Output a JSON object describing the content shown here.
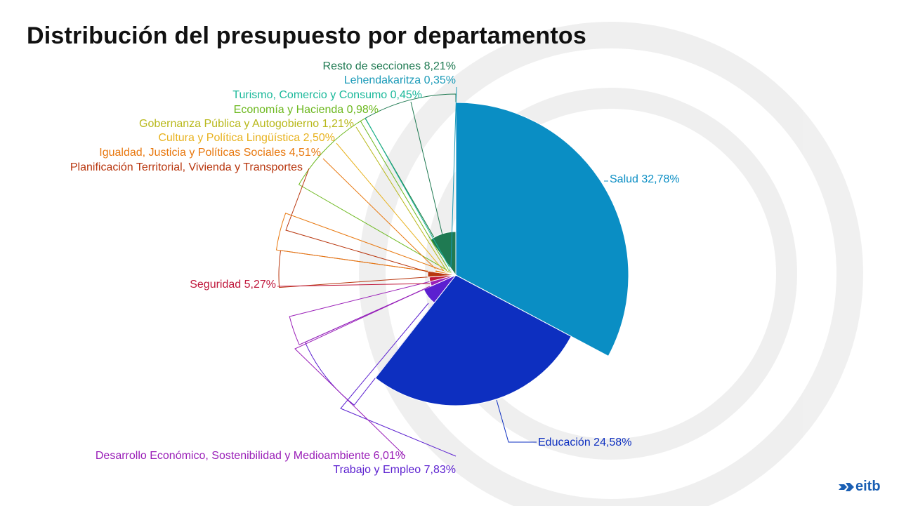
{
  "title": "Distribución del presupuesto por departamentos",
  "brand": {
    "name": "eitb",
    "icon": "eitb-logo-icon",
    "color": "#1a5fb4"
  },
  "chart_data": {
    "type": "pie",
    "subtype": "polar-area",
    "title": "Distribución del presupuesto por departamentos",
    "unit": "%",
    "slices": [
      {
        "label": "Salud 32,78%",
        "name": "Salud",
        "value": 32.78,
        "color": "#0a8ec4"
      },
      {
        "label": "Educación 24,58%",
        "name": "Educación",
        "value": 24.58,
        "color": "#0d2fc0"
      },
      {
        "label": "Trabajo y Empleo  7,83%",
        "name": "Trabajo y Empleo",
        "value": 7.83,
        "color": "#5b1fd0"
      },
      {
        "label": "Desarrollo Económico, Sostenibilidad y Medioambiente 6,01%",
        "name": "Desarrollo Económico, Sostenibilidad y Medioambiente",
        "value": 6.01,
        "color": "#9a1fb8"
      },
      {
        "label": "Seguridad 5,27%",
        "name": "Seguridad",
        "value": 5.27,
        "color": "#c0183c"
      },
      {
        "label": "Planificación Territorial, Vivienda y Transportes",
        "name": "Planificación Territorial, Vivienda y Transportes",
        "value": null,
        "color": "#b8360e"
      },
      {
        "label": "Igualdad, Justicia y Políticas Sociales  4,51%",
        "name": "Igualdad, Justicia y Políticas Sociales",
        "value": 4.51,
        "color": "#e8780f"
      },
      {
        "label": "Cultura y Política Lingüística  2,50%",
        "name": "Cultura y Política Lingüística",
        "value": 2.5,
        "color": "#e8b21e"
      },
      {
        "label": "Gobernanza Pública y Autogobierno  1,21%",
        "name": "Gobernanza Pública y Autogobierno",
        "value": 1.21,
        "color": "#b8b81a"
      },
      {
        "label": "Economía y Hacienda  0,98%",
        "name": "Economía y Hacienda",
        "value": 0.98,
        "color": "#6cb81e"
      },
      {
        "label": "Turismo, Comercio y Consumo 0,45%",
        "name": "Turismo, Comercio y Consumo",
        "value": 0.45,
        "color": "#1ab89a"
      },
      {
        "label": "Lehendakaritza 0,35%",
        "name": "Lehendakaritza",
        "value": 0.35,
        "color": "#1a9ab8"
      },
      {
        "label": "Resto de secciones 8,21%",
        "name": "Resto de secciones",
        "value": 8.21,
        "color": "#1f7a52"
      }
    ]
  }
}
